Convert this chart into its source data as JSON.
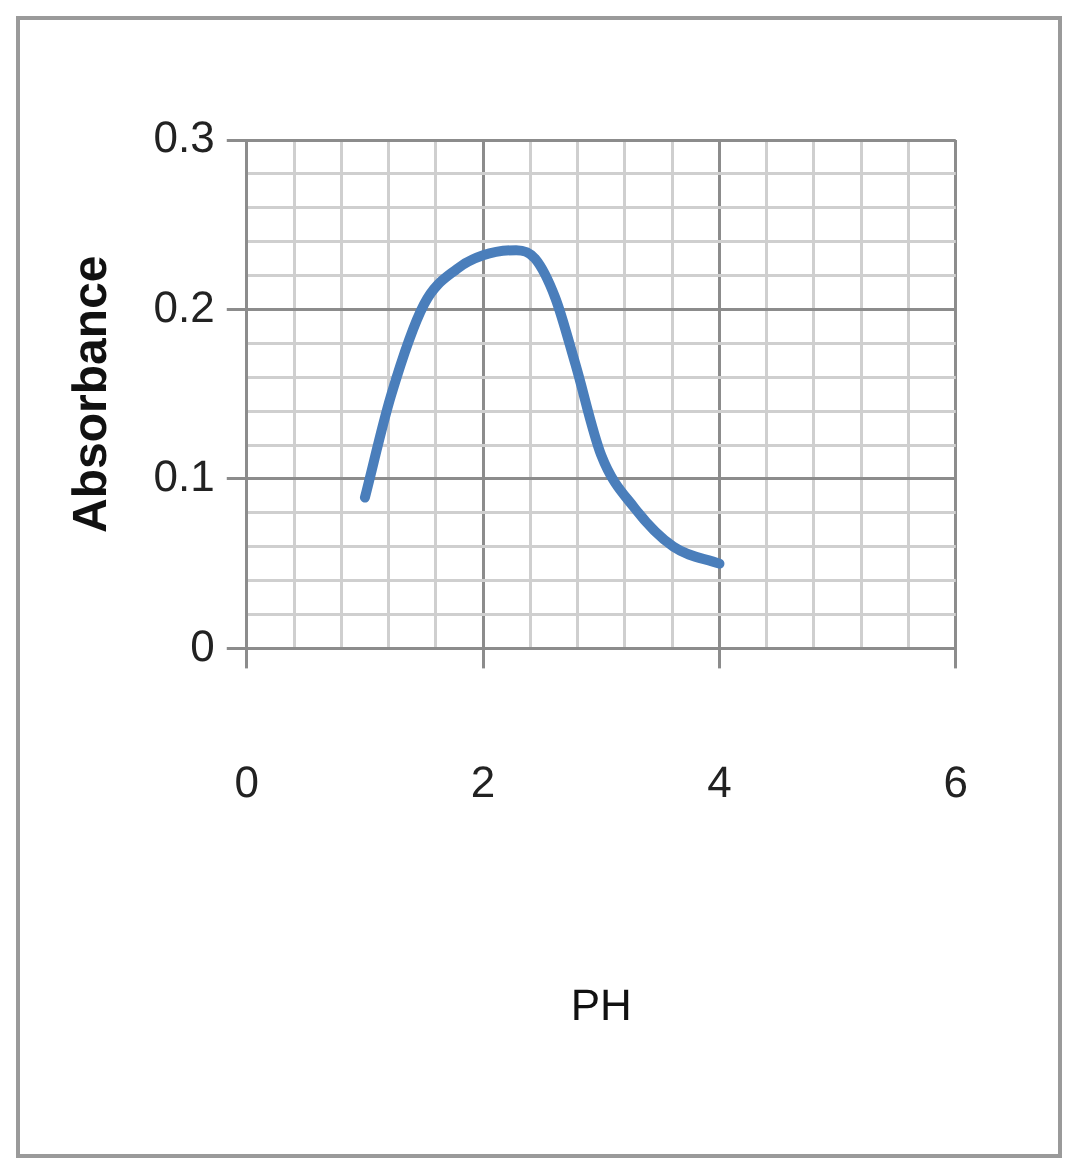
{
  "chart_data": {
    "type": "line",
    "xlabel": "PH",
    "ylabel": "Absorbance",
    "series": [
      {
        "color": "#4a7ebb",
        "x": [
          1.0,
          1.22,
          1.5,
          1.78,
          2.0,
          2.28,
          2.44,
          2.61,
          2.78,
          3.0,
          3.28,
          3.61,
          4.0
        ],
        "values": [
          0.089,
          0.149,
          0.203,
          0.224,
          0.232,
          0.235,
          0.23,
          0.207,
          0.168,
          0.114,
          0.083,
          0.06,
          0.05
        ]
      }
    ],
    "xlim": [
      0,
      6
    ],
    "ylim": [
      0,
      0.3
    ],
    "xticks": [
      0,
      {
        "value": 0.4,
        "label": null
      },
      {
        "value": 0.8,
        "label": null
      },
      {
        "value": 1.2,
        "label": null
      },
      {
        "value": 1.6,
        "label": null
      },
      2,
      {
        "value": 2.4,
        "label": null
      },
      {
        "value": 2.8,
        "label": null
      },
      {
        "value": 3.2,
        "label": null
      },
      {
        "value": 3.6,
        "label": null
      },
      4,
      {
        "value": 4.4,
        "label": null
      },
      {
        "value": 4.8,
        "label": null
      },
      {
        "value": 5.2,
        "label": null
      },
      {
        "value": 5.6,
        "label": null
      },
      6
    ],
    "yticks": [
      0,
      {
        "value": 0.02,
        "label": null
      },
      {
        "value": 0.04,
        "label": null
      },
      {
        "value": 0.06,
        "label": null
      },
      {
        "value": 0.08,
        "label": null
      },
      0.1,
      {
        "value": 0.12,
        "label": null
      },
      {
        "value": 0.14,
        "label": null
      },
      {
        "value": 0.16,
        "label": null
      },
      {
        "value": 0.18,
        "label": null
      },
      0.2,
      {
        "value": 0.22,
        "label": null
      },
      {
        "value": 0.24,
        "label": null
      },
      {
        "value": 0.26,
        "label": null
      },
      {
        "value": 0.28,
        "label": null
      },
      0.3
    ],
    "grid": true,
    "legend": false,
    "marker": "none",
    "line_style": "solid"
  }
}
